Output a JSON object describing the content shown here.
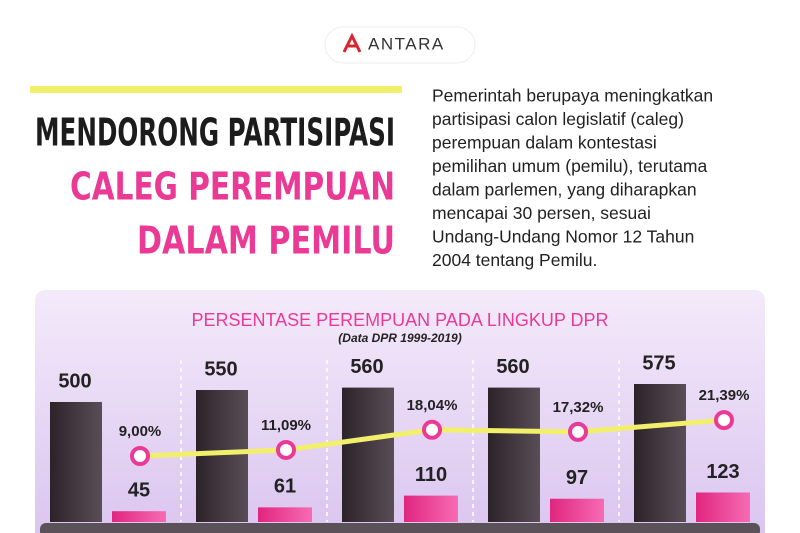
{
  "logo": "ANTARA",
  "title": {
    "lines": [
      "MENDORONG PARTISIPASI",
      "CALEG PEREMPUAN",
      "DALAM PEMILU"
    ]
  },
  "description": [
    "Pemerintah berupaya meningkatkan",
    "partisipasi calon legislatif (caleg)",
    "perempuan dalam kontestasi",
    "pemilihan umum (pemilu), terutama",
    "dalam parlemen, yang diharapkan",
    "mencapai 30 persen, sesuai",
    "Undang-Undang Nomor 12 Tahun",
    "2004 tentang Pemilu."
  ],
  "chart_data": {
    "type": "bar",
    "title": "PERSENTASE PEREMPUAN PADA LINGKUP DPR",
    "subtitle": "(Data DPR 1999-2019)",
    "categories": [
      null,
      null,
      null,
      null,
      null
    ],
    "series": [
      {
        "type": "bar",
        "color": "#3a2f36",
        "values": [
          500,
          550,
          560,
          560,
          575
        ]
      },
      {
        "type": "bar",
        "color": "#ec3d96",
        "values": [
          45,
          61,
          110,
          97,
          123
        ]
      },
      {
        "type": "line",
        "color": "#f2f06a",
        "values": [
          9.0,
          11.09,
          18.04,
          17.32,
          21.39
        ],
        "value_labels": [
          "9,00%",
          "11,09%",
          "18,04%",
          "17,32%",
          "21,39%"
        ]
      }
    ]
  }
}
